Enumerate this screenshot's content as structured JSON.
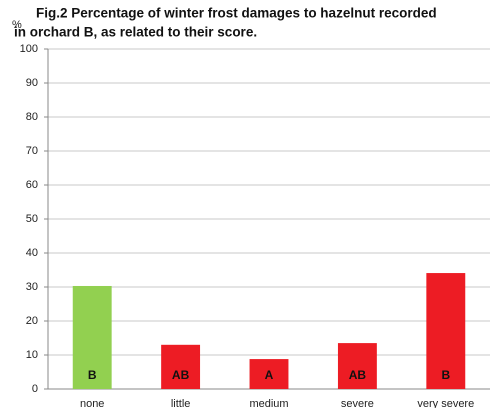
{
  "chart_data": {
    "type": "bar",
    "title": [
      "Fig.2 Percentage of winter frost damages to hazelnut recorded",
      "in orchard B, as related to their score."
    ],
    "y_label": "%",
    "categories": [
      "none",
      "little",
      "medium",
      "severe",
      "very severe"
    ],
    "values": [
      30.3,
      13,
      8.8,
      13.5,
      34.1
    ],
    "colors": [
      "#92d050",
      "#ed1c24",
      "#ed1c24",
      "#ed1c24",
      "#ed1c24"
    ],
    "bar_labels": [
      "B",
      "AB",
      "A",
      "AB",
      "B"
    ],
    "ylim": [
      0,
      100
    ],
    "yticks": [
      0,
      10,
      20,
      30,
      40,
      50,
      60,
      70,
      80,
      90,
      100
    ],
    "grid": true
  }
}
